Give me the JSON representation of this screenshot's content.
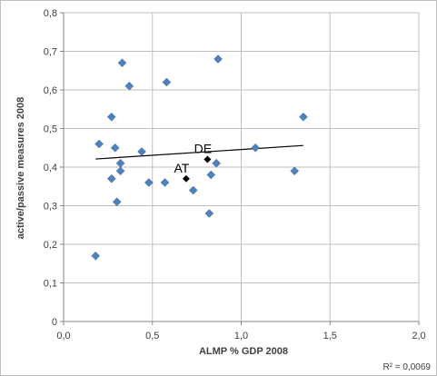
{
  "chart_data": {
    "type": "scatter",
    "title": "",
    "xlabel": "ALMP % GDP 2008",
    "ylabel": "active/passive measures 2008",
    "xlim": [
      0,
      2
    ],
    "ylim": [
      0,
      0.8
    ],
    "x_ticks": [
      "0,0",
      "0,5",
      "1,0",
      "1,5",
      "2,0"
    ],
    "y_ticks": [
      "0",
      "0,1",
      "0,2",
      "0,3",
      "0,4",
      "0,5",
      "0,6",
      "0,7",
      "0,8"
    ],
    "grid": true,
    "colors": {
      "points": "#4f81bd",
      "highlight": "#000000",
      "grid": "#bfbfbf",
      "trendline": "#000000"
    },
    "points": [
      {
        "x": 0.18,
        "y": 0.17
      },
      {
        "x": 0.2,
        "y": 0.46
      },
      {
        "x": 0.27,
        "y": 0.53
      },
      {
        "x": 0.27,
        "y": 0.37
      },
      {
        "x": 0.29,
        "y": 0.45
      },
      {
        "x": 0.3,
        "y": 0.31
      },
      {
        "x": 0.32,
        "y": 0.41
      },
      {
        "x": 0.32,
        "y": 0.39
      },
      {
        "x": 0.33,
        "y": 0.67
      },
      {
        "x": 0.37,
        "y": 0.61
      },
      {
        "x": 0.44,
        "y": 0.44
      },
      {
        "x": 0.48,
        "y": 0.36
      },
      {
        "x": 0.57,
        "y": 0.36
      },
      {
        "x": 0.58,
        "y": 0.62
      },
      {
        "x": 0.73,
        "y": 0.34
      },
      {
        "x": 0.82,
        "y": 0.28
      },
      {
        "x": 0.83,
        "y": 0.38
      },
      {
        "x": 0.86,
        "y": 0.41
      },
      {
        "x": 0.87,
        "y": 0.68
      },
      {
        "x": 1.08,
        "y": 0.45
      },
      {
        "x": 1.3,
        "y": 0.39
      },
      {
        "x": 1.35,
        "y": 0.53
      }
    ],
    "highlighted_points": [
      {
        "label": "AT",
        "x": 0.69,
        "y": 0.37
      },
      {
        "label": "DE",
        "x": 0.81,
        "y": 0.42
      }
    ],
    "trendline": {
      "x": [
        0.18,
        1.35
      ],
      "y": [
        0.421,
        0.456
      ]
    },
    "r_squared_label": "R² = 0,0069"
  }
}
